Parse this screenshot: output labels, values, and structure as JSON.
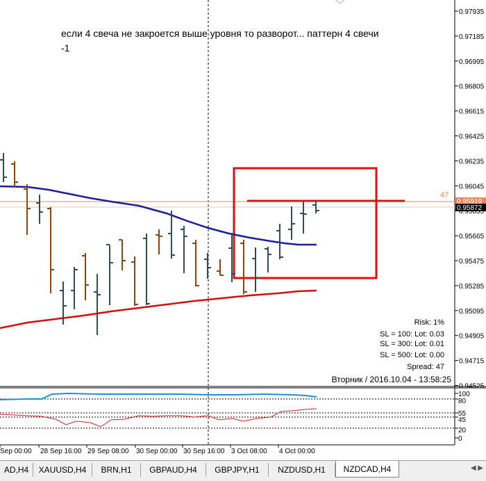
{
  "annotation": {
    "line1": "если 4 свеча не закроется выше уровня то разворот... паттерн 4 свечи",
    "line2": "-1"
  },
  "price_axis": {
    "ticks": [
      "0.97935",
      "0.97185",
      "0.96995",
      "0.96805",
      "0.96615",
      "0.96425",
      "0.96235",
      "0.96045",
      "0.95855",
      "0.95665",
      "0.95475",
      "0.95285",
      "0.95095",
      "0.94905",
      "0.94715",
      "0.94525"
    ],
    "level_price": "0.95919",
    "current_price": "0.95872",
    "level_label": "47"
  },
  "info_panel": {
    "risk": "Risk: 1%",
    "sl100": "SL = 100: Lot: 0.03",
    "sl300": "SL = 300: Lot: 0.01",
    "sl500": "SL = 500: Lot: 0.00",
    "spread": "Spread: 47",
    "datetime": "Вторник  /  2016.10.04  -  13:58:25"
  },
  "indicator_axis": {
    "ticks": [
      "100",
      "80",
      "55",
      "45",
      "20",
      "0"
    ]
  },
  "time_axis": {
    "labels": [
      "Sep 00:00",
      "28 Sep 16:00",
      "29 Sep 08:00",
      "30 Sep 00:00",
      "30 Sep 16:00",
      "3 Oct 08:00",
      "4 Oct 00:00"
    ]
  },
  "tabs": [
    "AD,H4",
    "XAUUSD,H4",
    "BRN,H1",
    "GBPAUD,H4",
    "GBPJPY,H1",
    "NZDUSD,H1",
    "NZDCAD,H4"
  ],
  "active_tab": "NZDCAD,H4",
  "colors": {
    "bull": "#2f4f4f",
    "bear": "#8b4513",
    "ma_blue": "#1c1c9c",
    "ma_red": "#cc1111",
    "box_red": "#dd1111",
    "level_orange": "#e8875a",
    "indicator_blue": "#1e90d0",
    "indicator_red": "#cc2222"
  }
}
